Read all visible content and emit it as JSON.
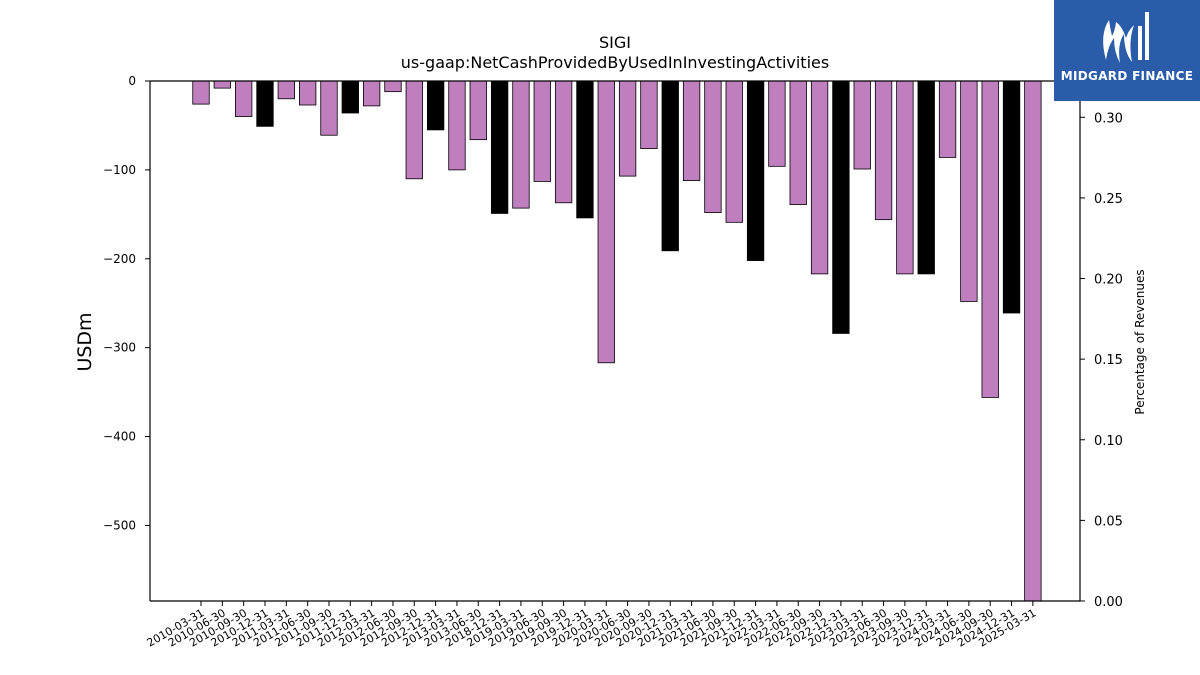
{
  "brand": {
    "name": "MIDGARD FINANCE",
    "icon": "midgard-logo-icon",
    "bg_color": "#2a5caa"
  },
  "colors": {
    "bar_default": "#bf7fbf",
    "bar_highlight": "#000000"
  },
  "chart_data": {
    "type": "bar",
    "title": "SIGI",
    "subtitle": "us-gaap:NetCashProvidedByUsedInInvestingActivities",
    "ylabel": "USDm",
    "y2label": "Percentage of Revenues",
    "ylim": [
      -585,
      0
    ],
    "y2lim": [
      0,
      0.3225
    ],
    "yticks": [
      0,
      -100,
      -200,
      -300,
      -400,
      -500
    ],
    "y2ticks": [
      0.3,
      0.25,
      0.2,
      0.15,
      0.1,
      0.05,
      0.0
    ],
    "grid": false,
    "categories": [
      "2010-03-31",
      "2010-06-30",
      "2010-09-30",
      "2010-12-31",
      "2011-03-31",
      "2011-06-30",
      "2011-09-30",
      "2011-12-31",
      "2012-03-31",
      "2012-06-30",
      "2012-09-30",
      "2012-12-31",
      "2013-03-31",
      "2013-06-30",
      "2018-12-31",
      "2019-03-31",
      "2019-06-30",
      "2019-09-30",
      "2019-12-31",
      "2020-03-31",
      "2020-06-30",
      "2020-09-30",
      "2020-12-31",
      "2021-03-31",
      "2021-06-30",
      "2021-09-30",
      "2021-12-31",
      "2022-03-31",
      "2022-06-30",
      "2022-09-30",
      "2022-12-31",
      "2023-03-31",
      "2023-06-30",
      "2023-09-30",
      "2023-12-31",
      "2024-03-31",
      "2024-06-30",
      "2024-09-30",
      "2024-12-31",
      "2025-03-31"
    ],
    "values": [
      -26,
      -8,
      -40,
      -51,
      -20,
      -27,
      -61,
      -36,
      -28,
      -12,
      -110,
      -55,
      -100,
      -66,
      -149,
      -143,
      -113,
      -137,
      -154,
      -317,
      -107,
      -76,
      -191,
      -112,
      -148,
      -159,
      -202,
      -96,
      -139,
      -217,
      -284,
      -99,
      -156,
      -217,
      -217,
      -86,
      -248,
      -356,
      -261,
      -585
    ],
    "highlight": [
      false,
      false,
      false,
      true,
      false,
      false,
      false,
      true,
      false,
      false,
      false,
      true,
      false,
      false,
      true,
      false,
      false,
      false,
      true,
      false,
      false,
      false,
      true,
      false,
      false,
      false,
      true,
      false,
      false,
      false,
      true,
      false,
      false,
      false,
      true,
      false,
      false,
      false,
      true,
      false
    ]
  }
}
